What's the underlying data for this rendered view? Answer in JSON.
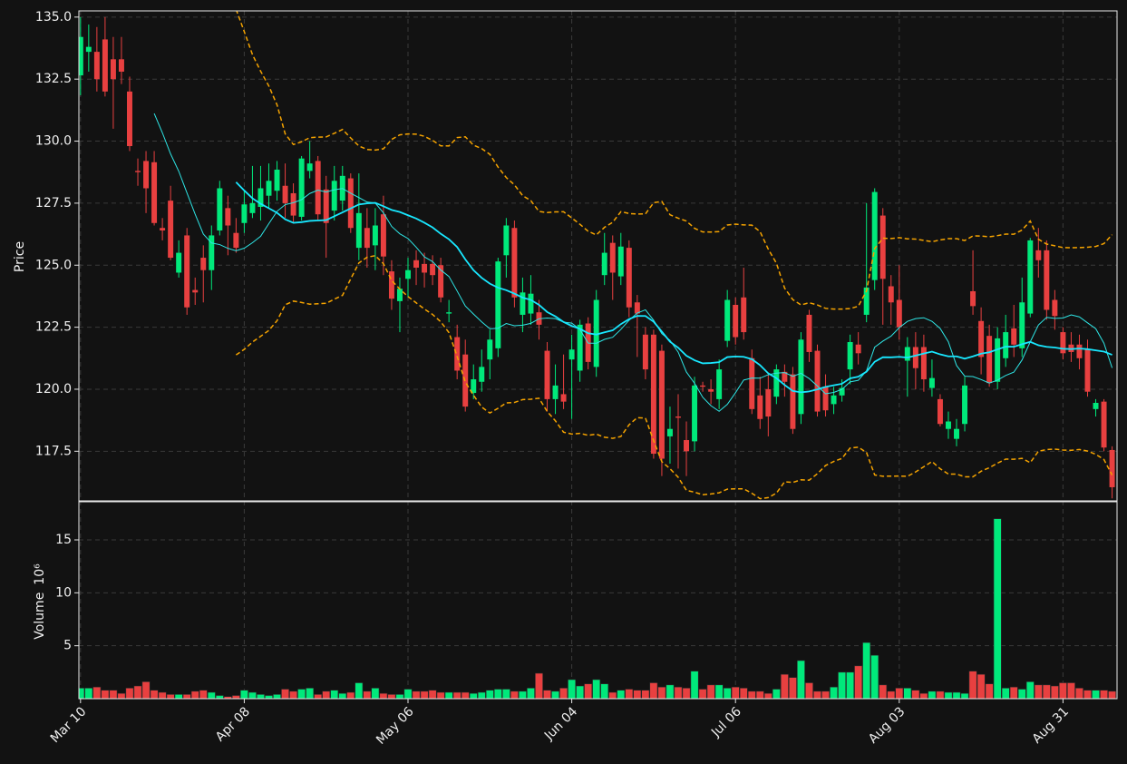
{
  "chart_data": {
    "type": "candlestick",
    "ylabel": "Price",
    "grid": true,
    "up_color": "#00e97b",
    "down_color": "#e84040",
    "xlim": [
      -0.2,
      126.6
    ],
    "xticks": [
      {
        "value": 0,
        "label": "Mar 10"
      },
      {
        "value": 20,
        "label": "Apr 08"
      },
      {
        "value": 40,
        "label": "May 06"
      },
      {
        "value": 60,
        "label": "Jun 04"
      },
      {
        "value": 80,
        "label": "Jul 06"
      },
      {
        "value": 100,
        "label": "Aug 03"
      },
      {
        "value": 120,
        "label": "Aug 31"
      }
    ],
    "ylim": [
      115.5,
      135.25
    ],
    "yticks": [
      117.5,
      {
        "value": 120,
        "label": "120.0"
      },
      122.5,
      {
        "value": 125,
        "label": "125.0"
      },
      127.5,
      {
        "value": 130,
        "label": "130.0"
      },
      132.5,
      {
        "value": 135,
        "label": "135.0"
      }
    ],
    "open": [
      132.65,
      133.6,
      133.6,
      134.1,
      133.3,
      133.3,
      132.0,
      128.8,
      129.2,
      129.15,
      126.5,
      127.6,
      124.7,
      126.2,
      124.0,
      125.3,
      124.8,
      126.4,
      127.3,
      126.3,
      126.7,
      127.1,
      127.35,
      127.8,
      128.0,
      128.2,
      127.9,
      126.95,
      128.8,
      129.2,
      128.05,
      127.2,
      127.6,
      128.5,
      125.7,
      126.5,
      125.8,
      127.05,
      124.75,
      123.55,
      124.45,
      125.2,
      125.05,
      125.05,
      125.0,
      123.05,
      122.1,
      121.4,
      119.85,
      120.3,
      121.2,
      121.65,
      125.4,
      126.5,
      123.0,
      123.05,
      123.1,
      121.55,
      119.6,
      119.8,
      121.2,
      120.75,
      122.65,
      120.9,
      124.6,
      125.9,
      124.55,
      125.7,
      123.5,
      122.2,
      122.2,
      121.55,
      118.1,
      118.9,
      117.95,
      117.9,
      120.15,
      120.0,
      119.6,
      121.95,
      123.4,
      123.7,
      121.25,
      119.75,
      120.0,
      119.7,
      120.7,
      120.6,
      119.0,
      123.0,
      121.55,
      120.1,
      119.4,
      119.75,
      120.8,
      121.8,
      123.0,
      124.4,
      127.0,
      124.15,
      123.6,
      121.15,
      121.7,
      121.7,
      120.05,
      119.6,
      118.4,
      118.0,
      118.6,
      123.95,
      122.75,
      122.15,
      120.3,
      121.25,
      122.45,
      121.65,
      123.05,
      125.6,
      125.6,
      123.6,
      122.3,
      121.8,
      121.8,
      121.6,
      119.2,
      119.5,
      117.55
    ],
    "high": [
      135.0,
      134.7,
      134.6,
      135.0,
      134.2,
      134.2,
      132.6,
      129.3,
      129.6,
      129.6,
      126.9,
      128.2,
      126.0,
      126.5,
      124.5,
      125.8,
      126.6,
      128.4,
      127.8,
      126.9,
      128.0,
      129.0,
      129.0,
      129.1,
      129.2,
      129.1,
      128.3,
      129.4,
      130.0,
      129.4,
      128.6,
      129.0,
      129.0,
      128.7,
      128.7,
      127.3,
      127.3,
      127.8,
      125.2,
      124.5,
      125.3,
      125.6,
      125.5,
      125.4,
      125.3,
      123.6,
      122.6,
      122.0,
      121.0,
      121.6,
      122.4,
      125.3,
      126.9,
      126.8,
      124.5,
      124.6,
      123.6,
      121.9,
      121.0,
      121.4,
      122.2,
      122.8,
      122.9,
      124.0,
      126.3,
      126.2,
      126.3,
      126.0,
      123.8,
      122.5,
      122.4,
      121.8,
      119.3,
      119.8,
      118.7,
      120.5,
      120.3,
      120.4,
      121.2,
      124.0,
      123.7,
      124.9,
      121.6,
      120.5,
      120.6,
      121.0,
      121.0,
      120.9,
      122.3,
      123.2,
      121.8,
      120.6,
      120.1,
      120.4,
      122.2,
      122.3,
      127.5,
      128.1,
      127.3,
      124.6,
      125.0,
      122.1,
      122.3,
      122.2,
      121.2,
      119.8,
      119.1,
      118.8,
      120.5,
      125.6,
      123.3,
      122.6,
      122.5,
      123.0,
      123.4,
      124.5,
      126.1,
      126.5,
      126.0,
      124.0,
      122.5,
      122.3,
      122.2,
      122.0,
      119.6,
      119.6,
      117.7
    ],
    "low": [
      131.85,
      132.8,
      132.0,
      131.8,
      130.5,
      132.3,
      129.6,
      128.2,
      127.1,
      126.6,
      126.0,
      125.2,
      124.5,
      123.0,
      123.4,
      123.5,
      124.0,
      126.2,
      125.4,
      125.5,
      126.3,
      126.9,
      126.8,
      127.3,
      127.6,
      126.9,
      126.7,
      126.8,
      128.5,
      126.8,
      125.3,
      126.8,
      127.2,
      126.3,
      125.2,
      124.9,
      124.8,
      124.6,
      123.2,
      122.3,
      123.7,
      124.2,
      124.1,
      124.2,
      123.5,
      122.7,
      120.4,
      119.1,
      119.6,
      119.9,
      120.4,
      121.3,
      124.5,
      123.3,
      122.3,
      122.6,
      122.0,
      119.1,
      119.0,
      119.2,
      118.8,
      120.3,
      120.8,
      120.5,
      124.2,
      123.6,
      124.2,
      122.9,
      121.3,
      120.4,
      117.2,
      116.5,
      117.0,
      116.8,
      116.5,
      117.5,
      119.9,
      119.4,
      119.2,
      121.7,
      121.8,
      122.0,
      119.0,
      118.4,
      118.1,
      119.4,
      119.7,
      118.2,
      118.6,
      121.1,
      118.9,
      118.9,
      119.0,
      119.5,
      120.2,
      121.0,
      122.7,
      124.0,
      122.6,
      122.6,
      122.0,
      119.7,
      120.0,
      119.9,
      119.7,
      118.5,
      118.0,
      117.7,
      118.3,
      123.0,
      120.6,
      120.1,
      120.0,
      120.9,
      121.3,
      121.3,
      122.9,
      124.5,
      122.8,
      122.4,
      121.2,
      121.1,
      120.8,
      119.7,
      118.9,
      117.5,
      115.6
    ],
    "close": [
      134.2,
      133.8,
      132.5,
      132.0,
      132.5,
      132.8,
      129.8,
      128.75,
      128.1,
      126.7,
      126.4,
      125.3,
      125.5,
      123.3,
      123.9,
      124.8,
      126.2,
      128.1,
      126.6,
      125.7,
      127.45,
      127.5,
      128.1,
      128.4,
      128.85,
      127.5,
      127.0,
      129.3,
      129.1,
      127.05,
      126.7,
      128.4,
      128.6,
      126.5,
      127.1,
      125.7,
      126.6,
      125.35,
      123.65,
      124.05,
      124.8,
      124.9,
      124.7,
      124.6,
      123.7,
      123.1,
      120.75,
      119.3,
      120.4,
      120.9,
      122.0,
      125.15,
      126.6,
      123.7,
      123.9,
      123.85,
      122.6,
      119.6,
      120.15,
      119.5,
      121.6,
      122.6,
      121.1,
      123.6,
      125.5,
      124.7,
      125.75,
      123.3,
      123.05,
      120.8,
      117.4,
      117.2,
      118.4,
      118.85,
      117.5,
      120.15,
      120.1,
      119.9,
      120.8,
      123.6,
      122.1,
      122.3,
      119.2,
      118.8,
      118.9,
      120.8,
      120.3,
      118.4,
      122.0,
      121.5,
      119.1,
      119.15,
      119.75,
      120.05,
      121.9,
      121.45,
      124.1,
      127.95,
      124.45,
      123.5,
      122.5,
      121.7,
      120.85,
      120.4,
      120.45,
      118.6,
      118.7,
      118.4,
      120.15,
      123.35,
      121.3,
      120.25,
      122.05,
      122.3,
      121.8,
      123.5,
      126.0,
      125.2,
      123.2,
      122.95,
      121.45,
      121.5,
      121.25,
      119.9,
      119.45,
      117.65,
      116.05
    ],
    "moving_averages": [
      {
        "period": 10,
        "color": "#2ee6e6"
      },
      {
        "period": 20,
        "color": "#18e7ff"
      }
    ],
    "bollinger": {
      "period": 20,
      "std": 2,
      "color": "#f5a300"
    },
    "volume": {
      "ylabel": "Volume",
      "offset_label": "10⁶",
      "ylim": [
        0,
        18.6
      ],
      "yticks": [
        5,
        10,
        15
      ],
      "values": [
        1.0,
        1.0,
        1.1,
        0.8,
        0.8,
        0.5,
        1.0,
        1.2,
        1.6,
        0.8,
        0.6,
        0.4,
        0.4,
        0.4,
        0.7,
        0.8,
        0.6,
        0.3,
        0.2,
        0.3,
        0.8,
        0.6,
        0.4,
        0.3,
        0.4,
        0.9,
        0.7,
        0.9,
        1.0,
        0.4,
        0.7,
        0.8,
        0.5,
        0.6,
        1.5,
        0.7,
        1.0,
        0.5,
        0.4,
        0.4,
        0.9,
        0.7,
        0.7,
        0.8,
        0.6,
        0.6,
        0.6,
        0.6,
        0.5,
        0.6,
        0.8,
        0.9,
        0.9,
        0.7,
        0.7,
        1.0,
        2.4,
        0.8,
        0.7,
        1.0,
        1.8,
        1.2,
        1.4,
        1.8,
        1.4,
        0.6,
        0.8,
        0.9,
        0.8,
        0.8,
        1.5,
        1.1,
        1.3,
        1.1,
        1.0,
        2.6,
        0.9,
        1.3,
        1.3,
        1.0,
        1.1,
        1.0,
        0.7,
        0.7,
        0.5,
        0.9,
        2.3,
        2.0,
        3.6,
        1.5,
        0.7,
        0.7,
        1.1,
        2.5,
        2.5,
        3.1,
        5.3,
        4.1,
        1.3,
        0.7,
        1.0,
        1.0,
        0.8,
        0.5,
        0.7,
        0.7,
        0.6,
        0.6,
        0.5,
        2.6,
        2.3,
        1.4,
        17.0,
        1.0,
        1.1,
        0.9,
        1.6,
        1.3,
        1.3,
        1.2,
        1.5,
        1.5,
        1.0,
        0.8,
        0.8,
        0.8,
        0.7
      ]
    }
  }
}
